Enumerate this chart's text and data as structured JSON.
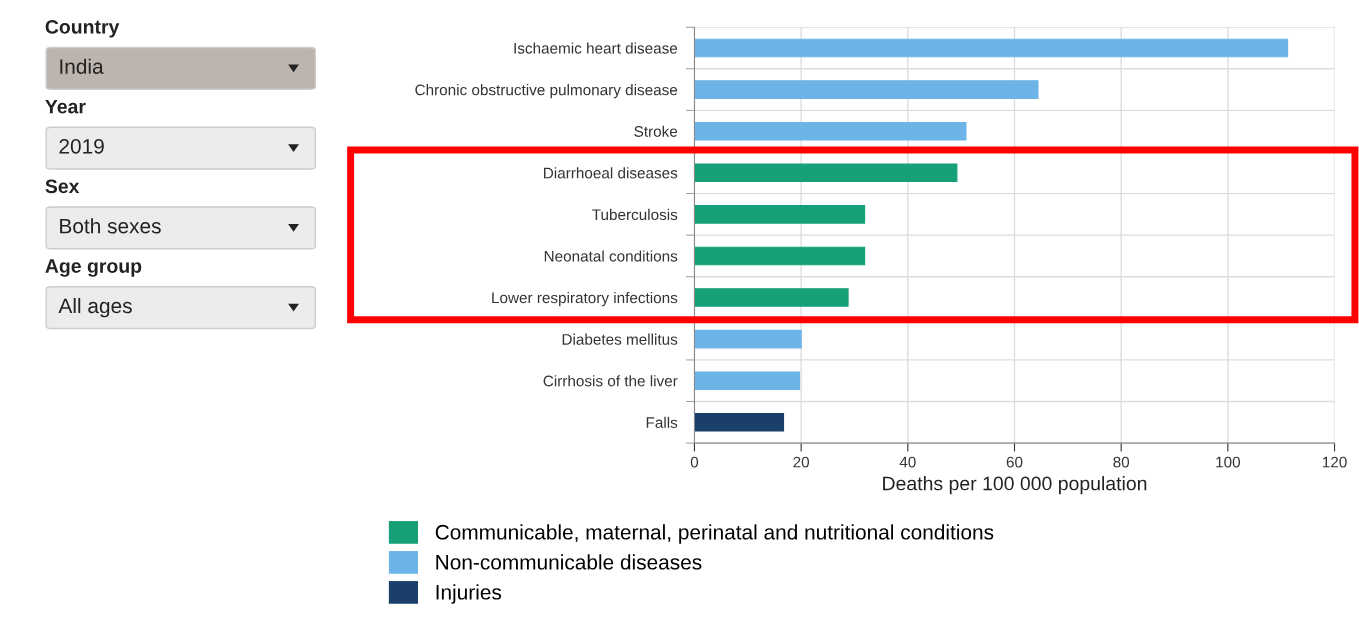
{
  "chart_data": {
    "type": "bar",
    "orientation": "horizontal",
    "categories": [
      "Ischaemic heart disease",
      "Chronic obstructive pulmonary disease",
      "Stroke",
      "Diarrhoeal diseases",
      "Tuberculosis",
      "Neonatal conditions",
      "Lower respiratory infections",
      "Diabetes mellitus",
      "Cirrhosis of the liver",
      "Falls"
    ],
    "series": [
      {
        "name": "Communicable, maternal, perinatal and nutritional conditions",
        "color": "#17a078",
        "values": [
          null,
          null,
          null,
          49.2,
          31.9,
          31.9,
          28.8,
          null,
          null,
          null
        ]
      },
      {
        "name": "Non-communicable diseases",
        "color": "#6cb4e8",
        "values": [
          111.2,
          64.4,
          50.9,
          null,
          null,
          null,
          null,
          20.0,
          19.7,
          null
        ]
      },
      {
        "name": "Injuries",
        "color": "#1b3f6b",
        "values": [
          null,
          null,
          null,
          null,
          null,
          null,
          null,
          null,
          null,
          16.7
        ]
      }
    ],
    "xlabel": "Deaths per 100 000 population",
    "xlim": [
      0,
      120
    ],
    "xticks": [
      0,
      20,
      40,
      60,
      80,
      100,
      120
    ],
    "grid": true,
    "legend": "bottom left",
    "annotations": [
      "Country",
      "India",
      "Year",
      "2019",
      "Sex",
      "Both sexes",
      "Age group",
      "All ages"
    ]
  }
}
